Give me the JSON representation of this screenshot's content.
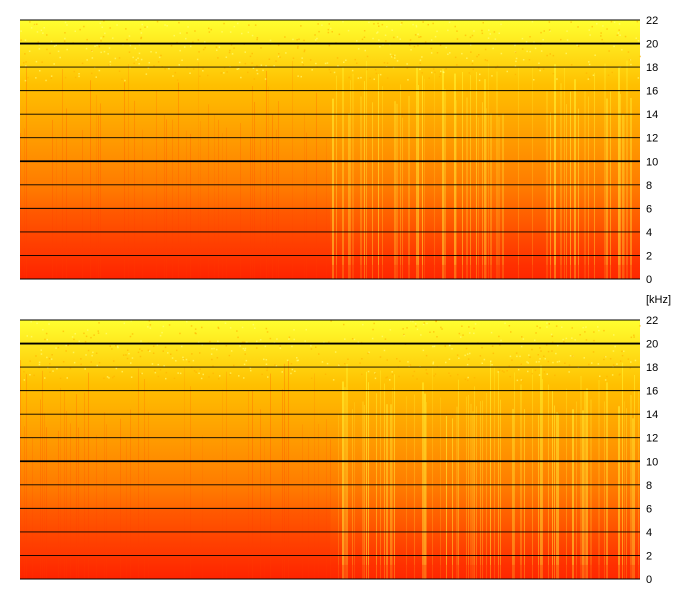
{
  "unit_label": "[kHz]",
  "chart_data": [
    {
      "type": "heatmap",
      "panel": "top",
      "colormap": [
        "#ff2200",
        "#ff7a00",
        "#ffc000",
        "#ffff30"
      ],
      "y_unit": "kHz",
      "ylim": [
        0,
        22
      ],
      "yticks": [
        0,
        2,
        4,
        6,
        8,
        10,
        12,
        14,
        16,
        18,
        20,
        22
      ],
      "ytick_labels": [
        "0",
        "2",
        "4",
        "6",
        "8",
        "10",
        "12",
        "14",
        "16",
        "18",
        "20",
        "22"
      ],
      "emphasized_gridlines": [
        10,
        20
      ],
      "grid": true,
      "x_transition_fraction": 0.5,
      "tick_side": "right"
    },
    {
      "type": "heatmap",
      "panel": "bottom",
      "colormap": [
        "#ff2200",
        "#ff7a00",
        "#ffc000",
        "#ffff30"
      ],
      "y_unit": "kHz",
      "ylim": [
        0,
        22
      ],
      "yticks": [
        0,
        2,
        4,
        6,
        8,
        10,
        12,
        14,
        16,
        18,
        20,
        22
      ],
      "ytick_labels": [
        "0",
        "2",
        "4",
        "6",
        "8",
        "10",
        "12",
        "14",
        "16",
        "18",
        "20",
        "22"
      ],
      "emphasized_gridlines": [
        10,
        20
      ],
      "grid": true,
      "x_transition_fraction": 0.5,
      "tick_side": "right"
    }
  ]
}
